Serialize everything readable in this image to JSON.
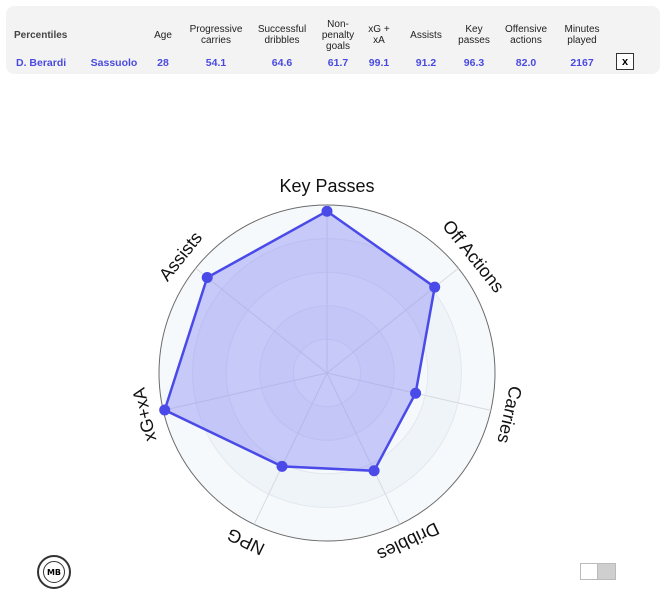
{
  "table": {
    "header": {
      "title": "Percentiles",
      "age": "Age",
      "prog_carries": "Progressive carries",
      "succ_dribbles": "Successful dribbles",
      "np_goals": "Non-penalty goals",
      "xg_xa": "xG + xA",
      "assists": "Assists",
      "key_passes": "Key passes",
      "off_actions": "Offensive actions",
      "minutes": "Minutes played"
    },
    "row": {
      "player": "D. Berardi",
      "team": "Sassuolo",
      "age": "28",
      "prog_carries": "54.1",
      "succ_dribbles": "64.6",
      "np_goals": "61.7",
      "xg_xa": "99.1",
      "assists": "91.2",
      "key_passes": "96.3",
      "off_actions": "82.0",
      "minutes": "2167"
    },
    "close_label": "x"
  },
  "chart_data": {
    "type": "radar",
    "axes": [
      "Key Passes",
      "Off Actions",
      "Carries",
      "Dribbles",
      "NPG",
      "xG+xA",
      "Assists"
    ],
    "series": [
      {
        "values": [
          96.3,
          82.0,
          54.1,
          64.6,
          61.7,
          99.1,
          91.2
        ]
      }
    ],
    "range": [
      0,
      100
    ],
    "grid": true,
    "colors": {
      "line": "#4a4ae8",
      "fill": "#8f8ff7",
      "grid": "#d6dbe1",
      "band": "#eef4f8"
    }
  },
  "logo": {
    "text": "MB"
  }
}
